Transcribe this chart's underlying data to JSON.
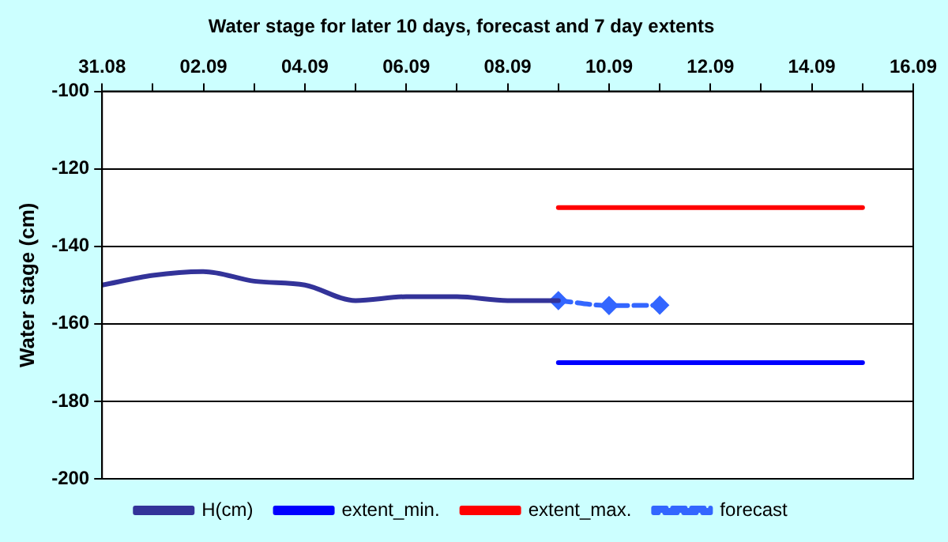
{
  "chart_data": {
    "type": "line",
    "title": "Water stage for later 10 days, forecast and 7 day extents",
    "ylabel": "Water stage (cm)",
    "xlim": [
      "--08-31",
      "--09-16"
    ],
    "xticks": [
      {
        "value": "--08-31",
        "label": "31.08"
      },
      {
        "value": "--09-01",
        "label": null
      },
      {
        "value": "--09-02",
        "label": "02.09"
      },
      {
        "value": "--09-03",
        "label": null
      },
      {
        "value": "--09-04",
        "label": "04.09"
      },
      {
        "value": "--09-05",
        "label": null
      },
      {
        "value": "--09-06",
        "label": "06.09"
      },
      {
        "value": "--09-07",
        "label": null
      },
      {
        "value": "--09-08",
        "label": "08.09"
      },
      {
        "value": "--09-09",
        "label": null
      },
      {
        "value": "--09-10",
        "label": "10.09"
      },
      {
        "value": "--09-11",
        "label": null
      },
      {
        "value": "--09-12",
        "label": "12.09"
      },
      {
        "value": "--09-13",
        "label": null
      },
      {
        "value": "--09-14",
        "label": "14.09"
      },
      {
        "value": "--09-15",
        "label": null
      },
      {
        "value": "--09-16",
        "label": "16.09"
      }
    ],
    "ylim": [
      -200,
      -100
    ],
    "yticks": [
      -200,
      -180,
      -160,
      -140,
      -120,
      -100
    ],
    "grid": "y",
    "legend": "bottom",
    "series": [
      {
        "name": "H(cm)",
        "color": "#333399",
        "marker": "none",
        "line_style": "solid",
        "x": [
          "--08-31",
          "--09-01",
          "--09-02",
          "--09-03",
          "--09-04",
          "--09-05",
          "--09-06",
          "--09-07",
          "--09-08",
          "--09-09"
        ],
        "values": [
          -150,
          -147.5,
          -146.5,
          -149,
          -150,
          -154,
          -153,
          -153,
          -154,
          -154
        ]
      },
      {
        "name": "extent_min.",
        "color": "#0000ff",
        "marker": "none",
        "line_style": "solid",
        "x": [
          "--09-09",
          "--09-15"
        ],
        "values": [
          -170,
          -170
        ]
      },
      {
        "name": "extent_max.",
        "color": "#ff0000",
        "marker": "none",
        "line_style": "solid",
        "x": [
          "--09-09",
          "--09-15"
        ],
        "values": [
          -130,
          -130
        ]
      },
      {
        "name": "forecast",
        "color": "#3366ff",
        "marker": "diamond",
        "line_style": "dashed",
        "x": [
          "--09-09",
          "--09-10",
          "--09-11"
        ],
        "values": [
          -154,
          -155.3,
          -155.2
        ]
      }
    ]
  }
}
